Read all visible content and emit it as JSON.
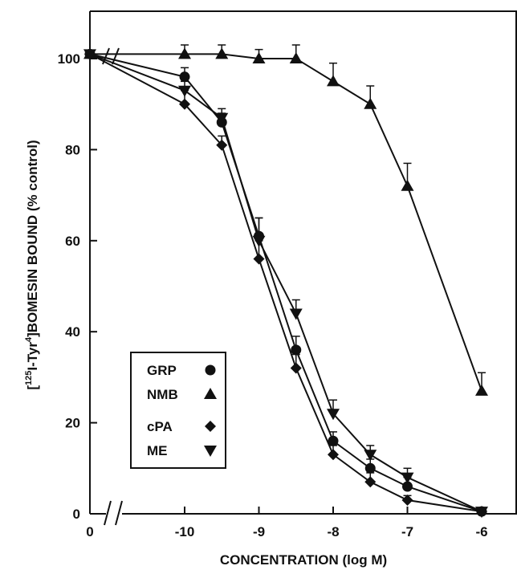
{
  "chart_data": {
    "type": "line",
    "xlabel": "CONCENTRATION (log M)",
    "ylabel_parts": {
      "bracket_open": "[",
      "sup1": "125",
      "mid": "I-Tyr",
      "sup2": "4",
      "rest": "]BOMESIN BOUND (% control)"
    },
    "ylim": [
      0,
      110
    ],
    "y_ticks": [
      "0",
      "20",
      "40",
      "60",
      "80",
      "100"
    ],
    "x_ticks": [
      "0",
      "-10",
      "-9",
      "-8",
      "-7",
      "-6"
    ],
    "x_axis_break": true,
    "grid": false,
    "legend_position": "bottom-left",
    "series": [
      {
        "name": "GRP",
        "marker": "circle",
        "x": [
          0,
          -10,
          -9.5,
          -9,
          -8.5,
          -8,
          -7.5,
          -7,
          -6
        ],
        "y": [
          101,
          96,
          86,
          61,
          36,
          16,
          10,
          6,
          0.5
        ],
        "err": [
          0,
          2,
          2,
          4,
          3,
          2,
          2,
          2,
          0
        ]
      },
      {
        "name": "NMB",
        "marker": "triangle-up",
        "x": [
          0,
          -10,
          -9.5,
          -9,
          -8.5,
          -8,
          -7.5,
          -7,
          -6
        ],
        "y": [
          101,
          101,
          101,
          100,
          100,
          95,
          90,
          72,
          27
        ],
        "err": [
          0,
          2,
          2,
          2,
          3,
          4,
          4,
          5,
          4
        ]
      },
      {
        "name": "cPA",
        "marker": "diamond",
        "x": [
          0,
          -10,
          -9.5,
          -9,
          -8.5,
          -8,
          -7.5,
          -7,
          -6
        ],
        "y": [
          101,
          90,
          81,
          56,
          32,
          13,
          7,
          3,
          0.5
        ],
        "err": [
          0,
          3,
          2,
          4,
          3,
          2,
          2,
          1,
          0
        ]
      },
      {
        "name": "ME",
        "marker": "triangle-down",
        "x": [
          0,
          -10,
          -9.5,
          -9,
          -8.5,
          -8,
          -7.5,
          -7,
          -6
        ],
        "y": [
          101,
          93,
          87,
          60,
          44,
          22,
          13,
          8,
          0.5
        ],
        "err": [
          0,
          2,
          2,
          5,
          3,
          3,
          2,
          2,
          0
        ]
      }
    ]
  }
}
